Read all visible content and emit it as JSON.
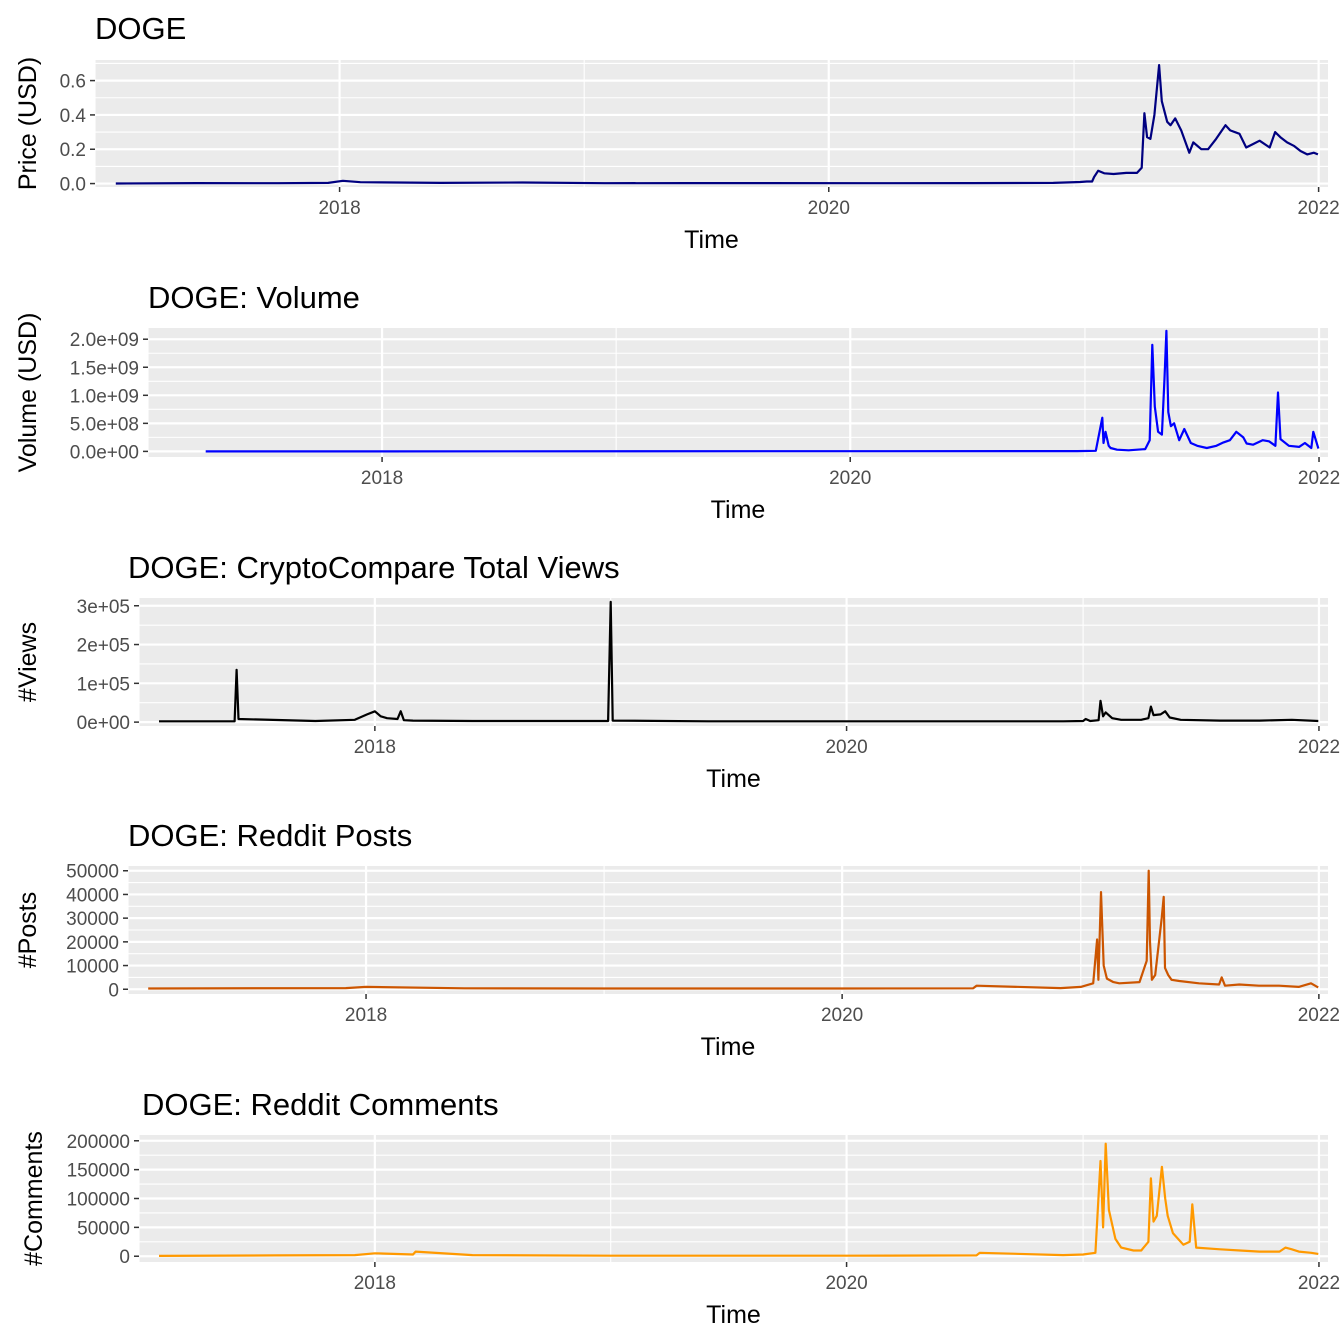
{
  "chart_data": [
    {
      "type": "line",
      "title": "DOGE",
      "xlabel": "Time",
      "ylabel": "Price (USD)",
      "x_ticks": [
        "2018",
        "2020",
        "2022"
      ],
      "y_ticks": [
        "0.0",
        "0.2",
        "0.4",
        "0.6"
      ],
      "y_tick_values": [
        0,
        0.2,
        0.4,
        0.6
      ],
      "ylim": [
        -0.02,
        0.72
      ],
      "xlim": [
        "2017-01-01",
        "2022-01-15"
      ],
      "color": "#000080",
      "grid": true,
      "series": [
        {
          "x": [
            "2017-02-01",
            "2017-06-01",
            "2017-10-01",
            "2017-12-15",
            "2018-01-06",
            "2018-02-01",
            "2018-06-01",
            "2018-10-01",
            "2019-02-01",
            "2019-06-01",
            "2019-10-01",
            "2020-03-01",
            "2020-08-01",
            "2020-12-01",
            "2021-01-10",
            "2021-01-20",
            "2021-01-28",
            "2021-01-31",
            "2021-02-06",
            "2021-02-15",
            "2021-03-01",
            "2021-03-20",
            "2021-04-05",
            "2021-04-12",
            "2021-04-16",
            "2021-04-20",
            "2021-04-25",
            "2021-05-01",
            "2021-05-08",
            "2021-05-12",
            "2021-05-20",
            "2021-05-25",
            "2021-06-01",
            "2021-06-10",
            "2021-06-22",
            "2021-06-28",
            "2021-07-10",
            "2021-07-20",
            "2021-08-01",
            "2021-08-15",
            "2021-08-22",
            "2021-09-05",
            "2021-09-15",
            "2021-09-25",
            "2021-10-05",
            "2021-10-20",
            "2021-10-28",
            "2021-11-05",
            "2021-11-15",
            "2021-11-25",
            "2021-12-05",
            "2021-12-15",
            "2021-12-25",
            "2021-12-31"
          ],
          "y": [
            0.0002,
            0.003,
            0.002,
            0.004,
            0.016,
            0.008,
            0.004,
            0.006,
            0.002,
            0.003,
            0.003,
            0.002,
            0.003,
            0.004,
            0.009,
            0.012,
            0.012,
            0.038,
            0.075,
            0.06,
            0.056,
            0.062,
            0.062,
            0.092,
            0.41,
            0.27,
            0.26,
            0.4,
            0.69,
            0.48,
            0.36,
            0.34,
            0.38,
            0.31,
            0.18,
            0.24,
            0.2,
            0.2,
            0.26,
            0.34,
            0.31,
            0.29,
            0.21,
            0.23,
            0.25,
            0.21,
            0.3,
            0.27,
            0.24,
            0.22,
            0.19,
            0.17,
            0.18,
            0.17
          ]
        }
      ]
    },
    {
      "type": "line",
      "title": "DOGE: Volume",
      "xlabel": "Time",
      "ylabel": "Volume (USD)",
      "x_ticks": [
        "2018",
        "2020",
        "2022"
      ],
      "y_ticks": [
        "0.0e+00",
        "5.0e+08",
        "1.0e+09",
        "1.5e+09",
        "2.0e+09"
      ],
      "y_tick_values": [
        0,
        500000000,
        1000000000,
        1500000000,
        2000000000
      ],
      "ylim": [
        -100000000,
        2200000000
      ],
      "xlim": [
        "2017-01-01",
        "2022-01-15"
      ],
      "color": "#0000ff",
      "grid": true,
      "series": [
        {
          "x": [
            "2017-04-01",
            "2020-12-20",
            "2021-01-18",
            "2021-01-28",
            "2021-01-30",
            "2021-02-02",
            "2021-02-07",
            "2021-02-10",
            "2021-02-20",
            "2021-03-10",
            "2021-04-05",
            "2021-04-12",
            "2021-04-16",
            "2021-04-20",
            "2021-04-25",
            "2021-05-01",
            "2021-05-05",
            "2021-05-08",
            "2021-05-11",
            "2021-05-15",
            "2021-05-20",
            "2021-05-28",
            "2021-06-05",
            "2021-06-15",
            "2021-06-25",
            "2021-07-10",
            "2021-07-25",
            "2021-08-05",
            "2021-08-15",
            "2021-08-25",
            "2021-09-05",
            "2021-09-10",
            "2021-09-20",
            "2021-10-05",
            "2021-10-15",
            "2021-10-25",
            "2021-10-29",
            "2021-11-02",
            "2021-11-15",
            "2021-12-01",
            "2021-12-10",
            "2021-12-20",
            "2021-12-23",
            "2021-12-31"
          ],
          "y": [
            0,
            5000000,
            10000000,
            600000000,
            150000000,
            350000000,
            100000000,
            60000000,
            30000000,
            20000000,
            40000000,
            200000000,
            1900000000,
            800000000,
            350000000,
            300000000,
            1300000000,
            2150000000,
            700000000,
            450000000,
            500000000,
            200000000,
            400000000,
            150000000,
            100000000,
            60000000,
            100000000,
            160000000,
            200000000,
            350000000,
            250000000,
            140000000,
            120000000,
            200000000,
            180000000,
            100000000,
            1050000000,
            220000000,
            100000000,
            80000000,
            150000000,
            60000000,
            350000000,
            50000000
          ]
        }
      ]
    },
    {
      "type": "line",
      "title": "DOGE: CryptoCompare Total Views",
      "xlabel": "Time",
      "ylabel": "#Views",
      "x_ticks": [
        "2018",
        "2020",
        "2022"
      ],
      "y_ticks": [
        "0e+00",
        "1e+05",
        "2e+05",
        "3e+05"
      ],
      "y_tick_values": [
        0,
        100000,
        200000,
        300000
      ],
      "ylim": [
        -10000,
        320000
      ],
      "xlim": [
        "2017-01-01",
        "2022-01-15"
      ],
      "color": "#000000",
      "grid": true,
      "series": [
        {
          "x": [
            "2017-02-01",
            "2017-05-29",
            "2017-06-01",
            "2017-06-04",
            "2017-10-01",
            "2017-12-01",
            "2017-12-20",
            "2018-01-01",
            "2018-01-10",
            "2018-01-20",
            "2018-02-05",
            "2018-02-10",
            "2018-02-15",
            "2018-03-01",
            "2018-06-01",
            "2018-09-01",
            "2018-12-28",
            "2019-01-01",
            "2019-01-04",
            "2019-06-01",
            "2020-01-01",
            "2020-06-01",
            "2020-12-01",
            "2021-01-01",
            "2021-01-05",
            "2021-01-12",
            "2021-01-25",
            "2021-01-28",
            "2021-02-01",
            "2021-02-05",
            "2021-02-15",
            "2021-03-01",
            "2021-04-01",
            "2021-04-12",
            "2021-04-16",
            "2021-04-20",
            "2021-05-01",
            "2021-05-08",
            "2021-05-15",
            "2021-06-01",
            "2021-08-01",
            "2021-10-01",
            "2021-11-20",
            "2021-12-31"
          ],
          "y": [
            2000,
            2000,
            135000,
            8000,
            3000,
            6000,
            20000,
            28000,
            15000,
            10000,
            8000,
            28000,
            5000,
            4000,
            3000,
            3000,
            3000,
            310000,
            4000,
            2000,
            2000,
            2000,
            2000,
            3000,
            8000,
            3000,
            5000,
            55000,
            15000,
            25000,
            10000,
            6000,
            6000,
            10000,
            40000,
            18000,
            20000,
            28000,
            12000,
            6000,
            4000,
            4000,
            6000,
            3000
          ]
        }
      ]
    },
    {
      "type": "line",
      "title": "DOGE: Reddit Posts",
      "xlabel": "Time",
      "ylabel": "#Posts",
      "x_ticks": [
        "2018",
        "2020",
        "2022"
      ],
      "y_ticks": [
        "0",
        "10000",
        "20000",
        "30000",
        "40000",
        "50000"
      ],
      "y_tick_values": [
        0,
        10000,
        20000,
        30000,
        40000,
        50000
      ],
      "ylim": [
        -2000,
        52000
      ],
      "xlim": [
        "2017-01-01",
        "2022-01-15"
      ],
      "color": "#cc5500",
      "grid": true,
      "series": [
        {
          "x": [
            "2017-02-01",
            "2017-12-01",
            "2018-01-01",
            "2018-06-01",
            "2019-01-01",
            "2020-01-01",
            "2020-07-20",
            "2020-07-25",
            "2020-12-01",
            "2021-01-01",
            "2021-01-20",
            "2021-01-26",
            "2021-01-28",
            "2021-02-01",
            "2021-02-05",
            "2021-02-10",
            "2021-02-20",
            "2021-03-01",
            "2021-04-01",
            "2021-04-12",
            "2021-04-15",
            "2021-04-17",
            "2021-04-20",
            "2021-04-25",
            "2021-05-05",
            "2021-05-08",
            "2021-05-10",
            "2021-05-15",
            "2021-05-20",
            "2021-06-01",
            "2021-07-01",
            "2021-08-01",
            "2021-08-05",
            "2021-08-10",
            "2021-09-01",
            "2021-10-01",
            "2021-11-01",
            "2021-12-01",
            "2021-12-20",
            "2021-12-31"
          ],
          "y": [
            300,
            500,
            1000,
            400,
            300,
            300,
            400,
            1500,
            500,
            1000,
            2500,
            21000,
            4000,
            41000,
            10000,
            4500,
            3000,
            2500,
            3000,
            12000,
            50000,
            20000,
            4000,
            6000,
            30000,
            39000,
            9000,
            6000,
            4000,
            3500,
            2500,
            2000,
            5000,
            1500,
            2000,
            1500,
            1500,
            1000,
            2500,
            800
          ]
        }
      ]
    },
    {
      "type": "line",
      "title": "DOGE: Reddit Comments",
      "xlabel": "Time",
      "ylabel": "#Comments",
      "x_ticks": [
        "2018",
        "2020",
        "2022"
      ],
      "y_ticks": [
        "0",
        "50000",
        "100000",
        "150000",
        "200000"
      ],
      "y_tick_values": [
        0,
        50000,
        100000,
        150000,
        200000
      ],
      "ylim": [
        -10000,
        210000
      ],
      "xlim": [
        "2017-01-01",
        "2022-01-15"
      ],
      "color": "#ff9900",
      "grid": true,
      "series": [
        {
          "x": [
            "2017-02-01",
            "2017-08-01",
            "2017-12-01",
            "2018-01-01",
            "2018-03-01",
            "2018-03-05",
            "2018-06-01",
            "2019-01-01",
            "2020-01-01",
            "2020-07-20",
            "2020-07-25",
            "2020-12-01",
            "2021-01-01",
            "2021-01-20",
            "2021-01-28",
            "2021-02-01",
            "2021-02-05",
            "2021-02-10",
            "2021-02-20",
            "2021-03-01",
            "2021-03-20",
            "2021-04-01",
            "2021-04-12",
            "2021-04-16",
            "2021-04-20",
            "2021-04-25",
            "2021-05-03",
            "2021-05-08",
            "2021-05-12",
            "2021-05-20",
            "2021-06-05",
            "2021-06-15",
            "2021-06-19",
            "2021-06-25",
            "2021-08-01",
            "2021-09-01",
            "2021-10-01",
            "2021-11-01",
            "2021-11-10",
            "2021-11-20",
            "2021-12-01",
            "2021-12-20",
            "2021-12-31"
          ],
          "y": [
            500,
            1500,
            2000,
            5000,
            3000,
            8000,
            2000,
            1000,
            1000,
            1500,
            6000,
            2000,
            3000,
            6000,
            165000,
            50000,
            195000,
            80000,
            30000,
            15000,
            10000,
            10000,
            25000,
            135000,
            60000,
            70000,
            155000,
            100000,
            70000,
            40000,
            20000,
            25000,
            90000,
            15000,
            12000,
            10000,
            8000,
            8000,
            15000,
            12000,
            8000,
            6000,
            4000
          ]
        }
      ]
    }
  ]
}
